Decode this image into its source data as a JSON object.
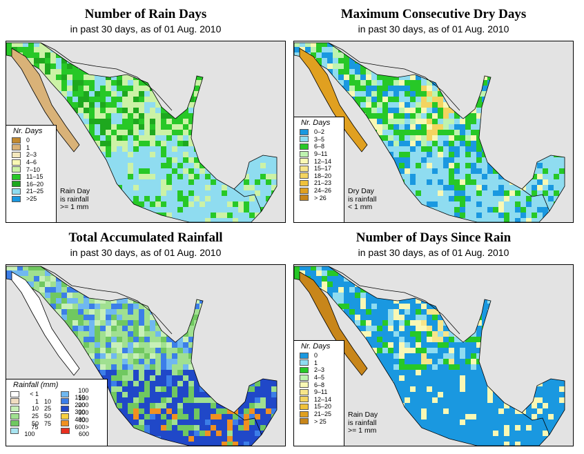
{
  "panels": [
    {
      "title": "Number of Rain Days",
      "subtitle": "in past 30 days, as of  01 Aug. 2010",
      "legend_title": "Nr. Days",
      "legend": [
        {
          "label": "0",
          "color": "#c28a30"
        },
        {
          "label": "1",
          "color": "#d9b278"
        },
        {
          "label": "2–3",
          "color": "#f4e8bd"
        },
        {
          "label": "4–6",
          "color": "#f9f8b4"
        },
        {
          "label": "7–10",
          "color": "#ccf2a6"
        },
        {
          "label": "11–15",
          "color": "#27c827"
        },
        {
          "label": "16–20",
          "color": "#1ea81e"
        },
        {
          "label": "21–25",
          "color": "#8fdcf0"
        },
        {
          "label": ">25",
          "color": "#1a98e0"
        }
      ],
      "note": [
        "Rain Day",
        "is rainfall",
        ">= 1 mm"
      ]
    },
    {
      "title": "Maximum Consecutive Dry Days",
      "subtitle": "in past 30 days, as of  01 Aug. 2010",
      "legend_title": "Nr. Days",
      "legend": [
        {
          "label": "0–2",
          "color": "#1a98e0"
        },
        {
          "label": "3–5",
          "color": "#8fdcf0"
        },
        {
          "label": "6–8",
          "color": "#27c827"
        },
        {
          "label": "9–11",
          "color": "#bef3b0"
        },
        {
          "label": "12–14",
          "color": "#f9f8b4"
        },
        {
          "label": "15–17",
          "color": "#f7e58a"
        },
        {
          "label": "18–20",
          "color": "#f3d460"
        },
        {
          "label": "21–23",
          "color": "#efc13a"
        },
        {
          "label": "24–26",
          "color": "#e0a020"
        },
        {
          "label": "> 26",
          "color": "#c8861a"
        }
      ],
      "note": [
        "Dry Day",
        "is rainfall",
        "< 1 mm"
      ]
    },
    {
      "title": "Total Accumulated Rainfall",
      "subtitle": "in past 30 days, as of  01 Aug. 2010",
      "legend_title": "Rainfall (mm)",
      "legend_left": [
        {
          "lo": "< 1",
          "hi": "",
          "color": "#ffffff"
        },
        {
          "lo": "1",
          "hi": "10",
          "color": "#f0dcc0"
        },
        {
          "lo": "10",
          "hi": "25",
          "color": "#c8f0b8"
        },
        {
          "lo": "25",
          "hi": "50",
          "color": "#a0e090"
        },
        {
          "lo": "50",
          "hi": "75",
          "color": "#70c860"
        },
        {
          "lo": "75",
          "hi": "100",
          "color": "#a8e4f0"
        }
      ],
      "legend_right": [
        {
          "lo": "100",
          "hi": "150",
          "color": "#70b8f0"
        },
        {
          "lo": "150",
          "hi": "200",
          "color": "#3c7ee8"
        },
        {
          "lo": "200",
          "hi": "300",
          "color": "#2048c8"
        },
        {
          "lo": "300",
          "hi": "400",
          "color": "#f8d040"
        },
        {
          "lo": "400",
          "hi": "600",
          "color": "#f09020"
        },
        {
          "lo": "> 600",
          "hi": "",
          "color": "#e83020"
        }
      ]
    },
    {
      "title": "Number of Days Since Rain",
      "subtitle": "in past 30 days, as of  01 Aug. 2010",
      "legend_title": "Nr. Days",
      "legend": [
        {
          "label": "0",
          "color": "#1a98e0"
        },
        {
          "label": "1",
          "color": "#8fdcf0"
        },
        {
          "label": "2–3",
          "color": "#27c827"
        },
        {
          "label": "4–5",
          "color": "#bef3b0"
        },
        {
          "label": "6–8",
          "color": "#f9f8b4"
        },
        {
          "label": "9–11",
          "color": "#f7e58a"
        },
        {
          "label": "12–14",
          "color": "#f3d460"
        },
        {
          "label": "15–20",
          "color": "#efc13a"
        },
        {
          "label": "21–25",
          "color": "#e0a020"
        },
        {
          "label": "> 25",
          "color": "#c8861a"
        }
      ],
      "note": [
        "Rain Day",
        "is rainfall",
        ">= 1 mm"
      ]
    }
  ]
}
